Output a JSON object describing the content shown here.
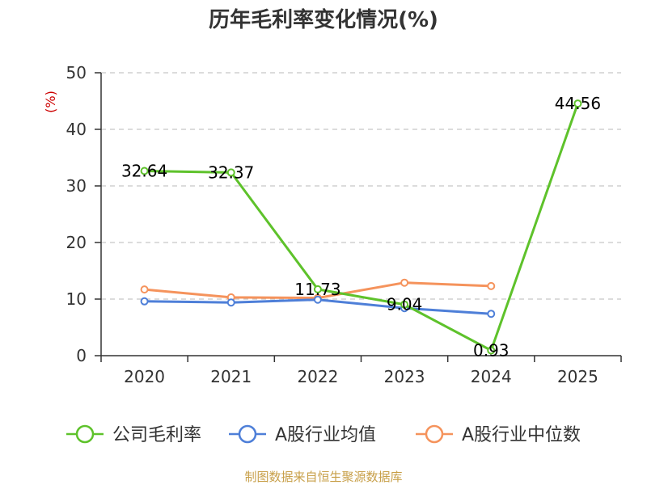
{
  "chart_data": {
    "type": "line",
    "title": "历年毛利率变化情况(%)",
    "ylabel": "(%)",
    "categories": [
      "2020",
      "2021",
      "2022",
      "2023",
      "2024",
      "2025"
    ],
    "ylim": [
      0,
      50
    ],
    "yticks": [
      0,
      10,
      20,
      30,
      40,
      50
    ],
    "grid": true,
    "legend_position": "bottom",
    "series": [
      {
        "name": "公司毛利率",
        "color": "#5ec22b",
        "values": [
          32.64,
          32.37,
          11.73,
          9.04,
          0.93,
          44.56
        ],
        "labels": [
          "32.64",
          "32.37",
          "11.73",
          "9.04",
          "0.93",
          "44.56"
        ]
      },
      {
        "name": "A股行业均值",
        "color": "#4e7fd8",
        "values": [
          9.6,
          9.4,
          9.9,
          8.4,
          7.4,
          null
        ]
      },
      {
        "name": "A股行业中位数",
        "color": "#f5935c",
        "values": [
          11.7,
          10.3,
          10.2,
          12.9,
          12.3,
          null
        ]
      }
    ],
    "source": "制图数据来自恒生聚源数据库"
  }
}
